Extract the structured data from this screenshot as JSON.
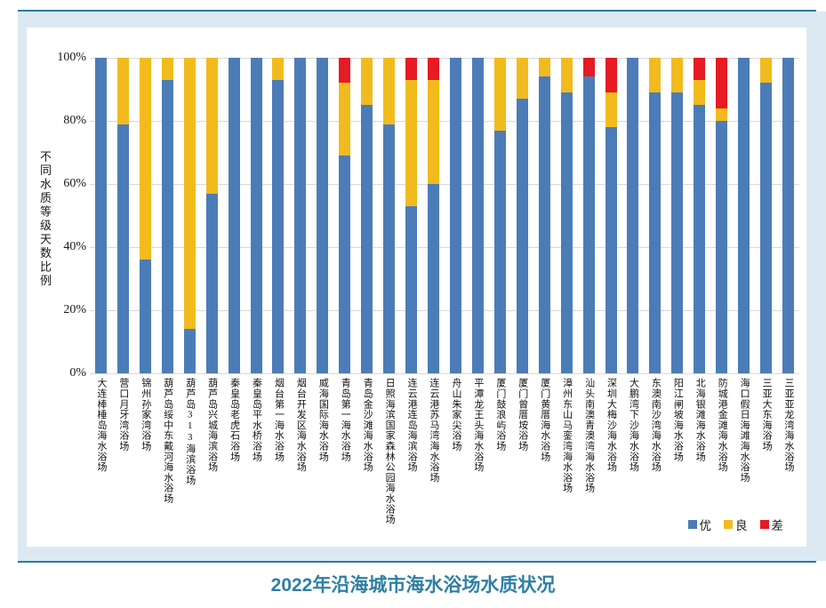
{
  "page": {
    "title": "2022年沿海城市海水浴场水质状况",
    "title_color": "#2e80a4",
    "rule_color": "#2b7ca3",
    "panel_bg": "#dce9f2"
  },
  "chart_data": {
    "type": "bar",
    "stacked": true,
    "title": "2022年沿海城市海水浴场水质状况",
    "xlabel": "",
    "ylabel": "不同水质等级天数比例",
    "ylim": [
      0,
      100
    ],
    "grid": true,
    "legend_position": "bottom-right",
    "ytick_labels": [
      "0%",
      "20%",
      "40%",
      "60%",
      "80%",
      "100%"
    ],
    "ytick_values": [
      0,
      20,
      40,
      60,
      80,
      100
    ],
    "categories": [
      "大连棒棰岛海水浴场",
      "营口月牙湾浴场",
      "锦州孙家湾浴场",
      "葫芦岛绥中东戴河海水浴场",
      "葫芦岛313海滨浴场",
      "葫芦岛兴城海滨浴场",
      "秦皇岛老虎石浴场",
      "秦皇岛平水桥浴场",
      "烟台第一海水浴场",
      "烟台开发区海水浴场",
      "威海国际海水浴场",
      "青岛第一海水浴场",
      "青岛金沙滩海水浴场",
      "日照海滨国家森林公园海水浴场",
      "连云港连岛海滨浴场",
      "连云港苏马湾海水浴场",
      "舟山朱家尖浴场",
      "平潭龙王头海水浴场",
      "厦门鼓浪屿浴场",
      "厦门曾厝垵浴场",
      "厦门黄厝海水浴场",
      "漳州东山马銮湾海水浴场",
      "汕头南澳青澳湾海水浴场",
      "深圳大梅沙海水浴场",
      "大鹏湾下沙海水浴场",
      "东澳南沙湾海水浴场",
      "阳江闸坡海水浴场",
      "北海银滩海水浴场",
      "防城港金滩海水浴场",
      "海口假日海滩海水浴场",
      "三亚大东海浴场",
      "三亚亚龙湾海水浴场"
    ],
    "series": [
      {
        "name": "优",
        "key": "excellent",
        "color": "#4c7cb8",
        "values": [
          100,
          79,
          36,
          93,
          14,
          57,
          100,
          100,
          93,
          100,
          100,
          69,
          85,
          79,
          53,
          60,
          100,
          100,
          77,
          87,
          94,
          89,
          94,
          78,
          100,
          89,
          89,
          85,
          80,
          100,
          92,
          100
        ]
      },
      {
        "name": "良",
        "key": "good",
        "color": "#f2bb1d",
        "values": [
          0,
          21,
          64,
          7,
          86,
          43,
          0,
          0,
          7,
          0,
          0,
          23,
          15,
          21,
          40,
          33,
          0,
          0,
          23,
          13,
          6,
          11,
          0,
          11,
          0,
          11,
          11,
          8,
          4,
          0,
          8,
          0
        ]
      },
      {
        "name": "差",
        "key": "poor",
        "color": "#e61b23",
        "values": [
          0,
          0,
          0,
          0,
          0,
          0,
          0,
          0,
          0,
          0,
          0,
          8,
          0,
          0,
          7,
          7,
          0,
          0,
          0,
          0,
          0,
          0,
          6,
          11,
          0,
          0,
          0,
          7,
          16,
          0,
          0,
          0
        ]
      }
    ]
  }
}
